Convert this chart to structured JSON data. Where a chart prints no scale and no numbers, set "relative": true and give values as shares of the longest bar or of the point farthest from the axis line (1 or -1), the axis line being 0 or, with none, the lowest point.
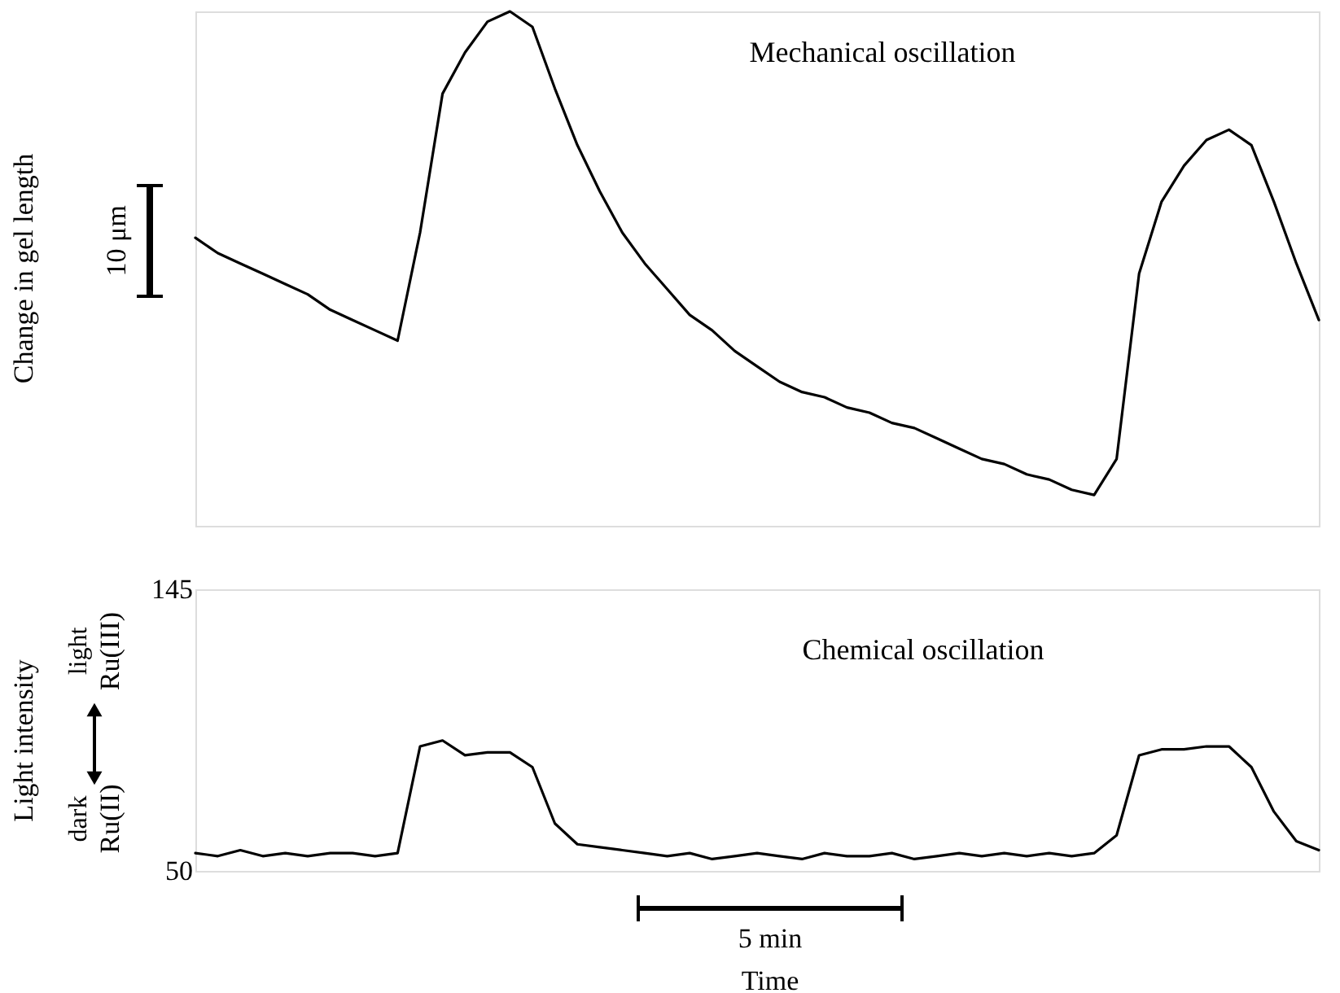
{
  "chart_data": [
    {
      "type": "line",
      "relative": true,
      "tick_labels": false,
      "ylabel": "Change in gel length",
      "annotations": [
        "Mechanical oscillation",
        "10 μm"
      ],
      "categories": [
        null,
        null,
        null,
        null,
        null,
        null,
        null,
        null,
        null,
        null,
        null,
        null,
        null,
        null,
        null,
        null,
        null,
        null,
        null,
        null,
        null,
        null,
        null,
        null,
        null,
        null,
        null,
        null,
        null,
        null,
        null,
        null,
        null,
        null,
        null,
        null,
        null,
        null,
        null,
        null,
        null,
        null,
        null,
        null,
        null,
        null,
        null,
        null,
        null,
        null,
        null
      ],
      "series": [
        {
          "color": "#000000",
          "values": [
            0.56,
            0.53,
            0.51,
            0.49,
            0.47,
            0.45,
            0.42,
            0.4,
            0.38,
            0.36,
            0.57,
            0.84,
            0.92,
            0.98,
            1.0,
            0.97,
            0.85,
            0.74,
            0.65,
            0.57,
            0.51,
            0.46,
            0.41,
            0.38,
            0.34,
            0.31,
            0.28,
            0.26,
            0.25,
            0.23,
            0.22,
            0.2,
            0.19,
            0.17,
            0.15,
            0.13,
            0.12,
            0.1,
            0.09,
            0.07,
            0.06,
            0.13,
            0.49,
            0.63,
            0.7,
            0.75,
            0.77,
            0.74,
            0.63,
            0.51,
            0.4
          ]
        }
      ]
    },
    {
      "type": "line",
      "tick_labels": "y",
      "ylabel": "Light intensity",
      "xlabel": "Time",
      "ylim": [
        50,
        145
      ],
      "yticks": [
        50,
        145
      ],
      "annotations": [
        "Chemical oscillation",
        "light",
        "Ru(III)",
        "dark",
        "Ru(II)",
        "5 min"
      ],
      "categories": [
        null,
        null,
        null,
        null,
        null,
        null,
        null,
        null,
        null,
        null,
        null,
        null,
        null,
        null,
        null,
        null,
        null,
        null,
        null,
        null,
        null,
        null,
        null,
        null,
        null,
        null,
        null,
        null,
        null,
        null,
        null,
        null,
        null,
        null,
        null,
        null,
        null,
        null,
        null,
        null,
        null,
        null,
        null,
        null,
        null,
        null,
        null,
        null,
        null,
        null,
        null
      ],
      "series": [
        {
          "color": "#000000",
          "values": [
            56,
            55,
            57,
            55,
            56,
            55,
            56,
            56,
            55,
            56,
            92,
            94,
            89,
            90,
            90,
            85,
            66,
            59,
            58,
            57,
            56,
            55,
            56,
            54,
            55,
            56,
            55,
            54,
            56,
            55,
            55,
            56,
            54,
            55,
            56,
            55,
            56,
            55,
            56,
            55,
            56,
            62,
            89,
            91,
            91,
            92,
            92,
            85,
            70,
            60,
            57
          ]
        }
      ]
    }
  ]
}
